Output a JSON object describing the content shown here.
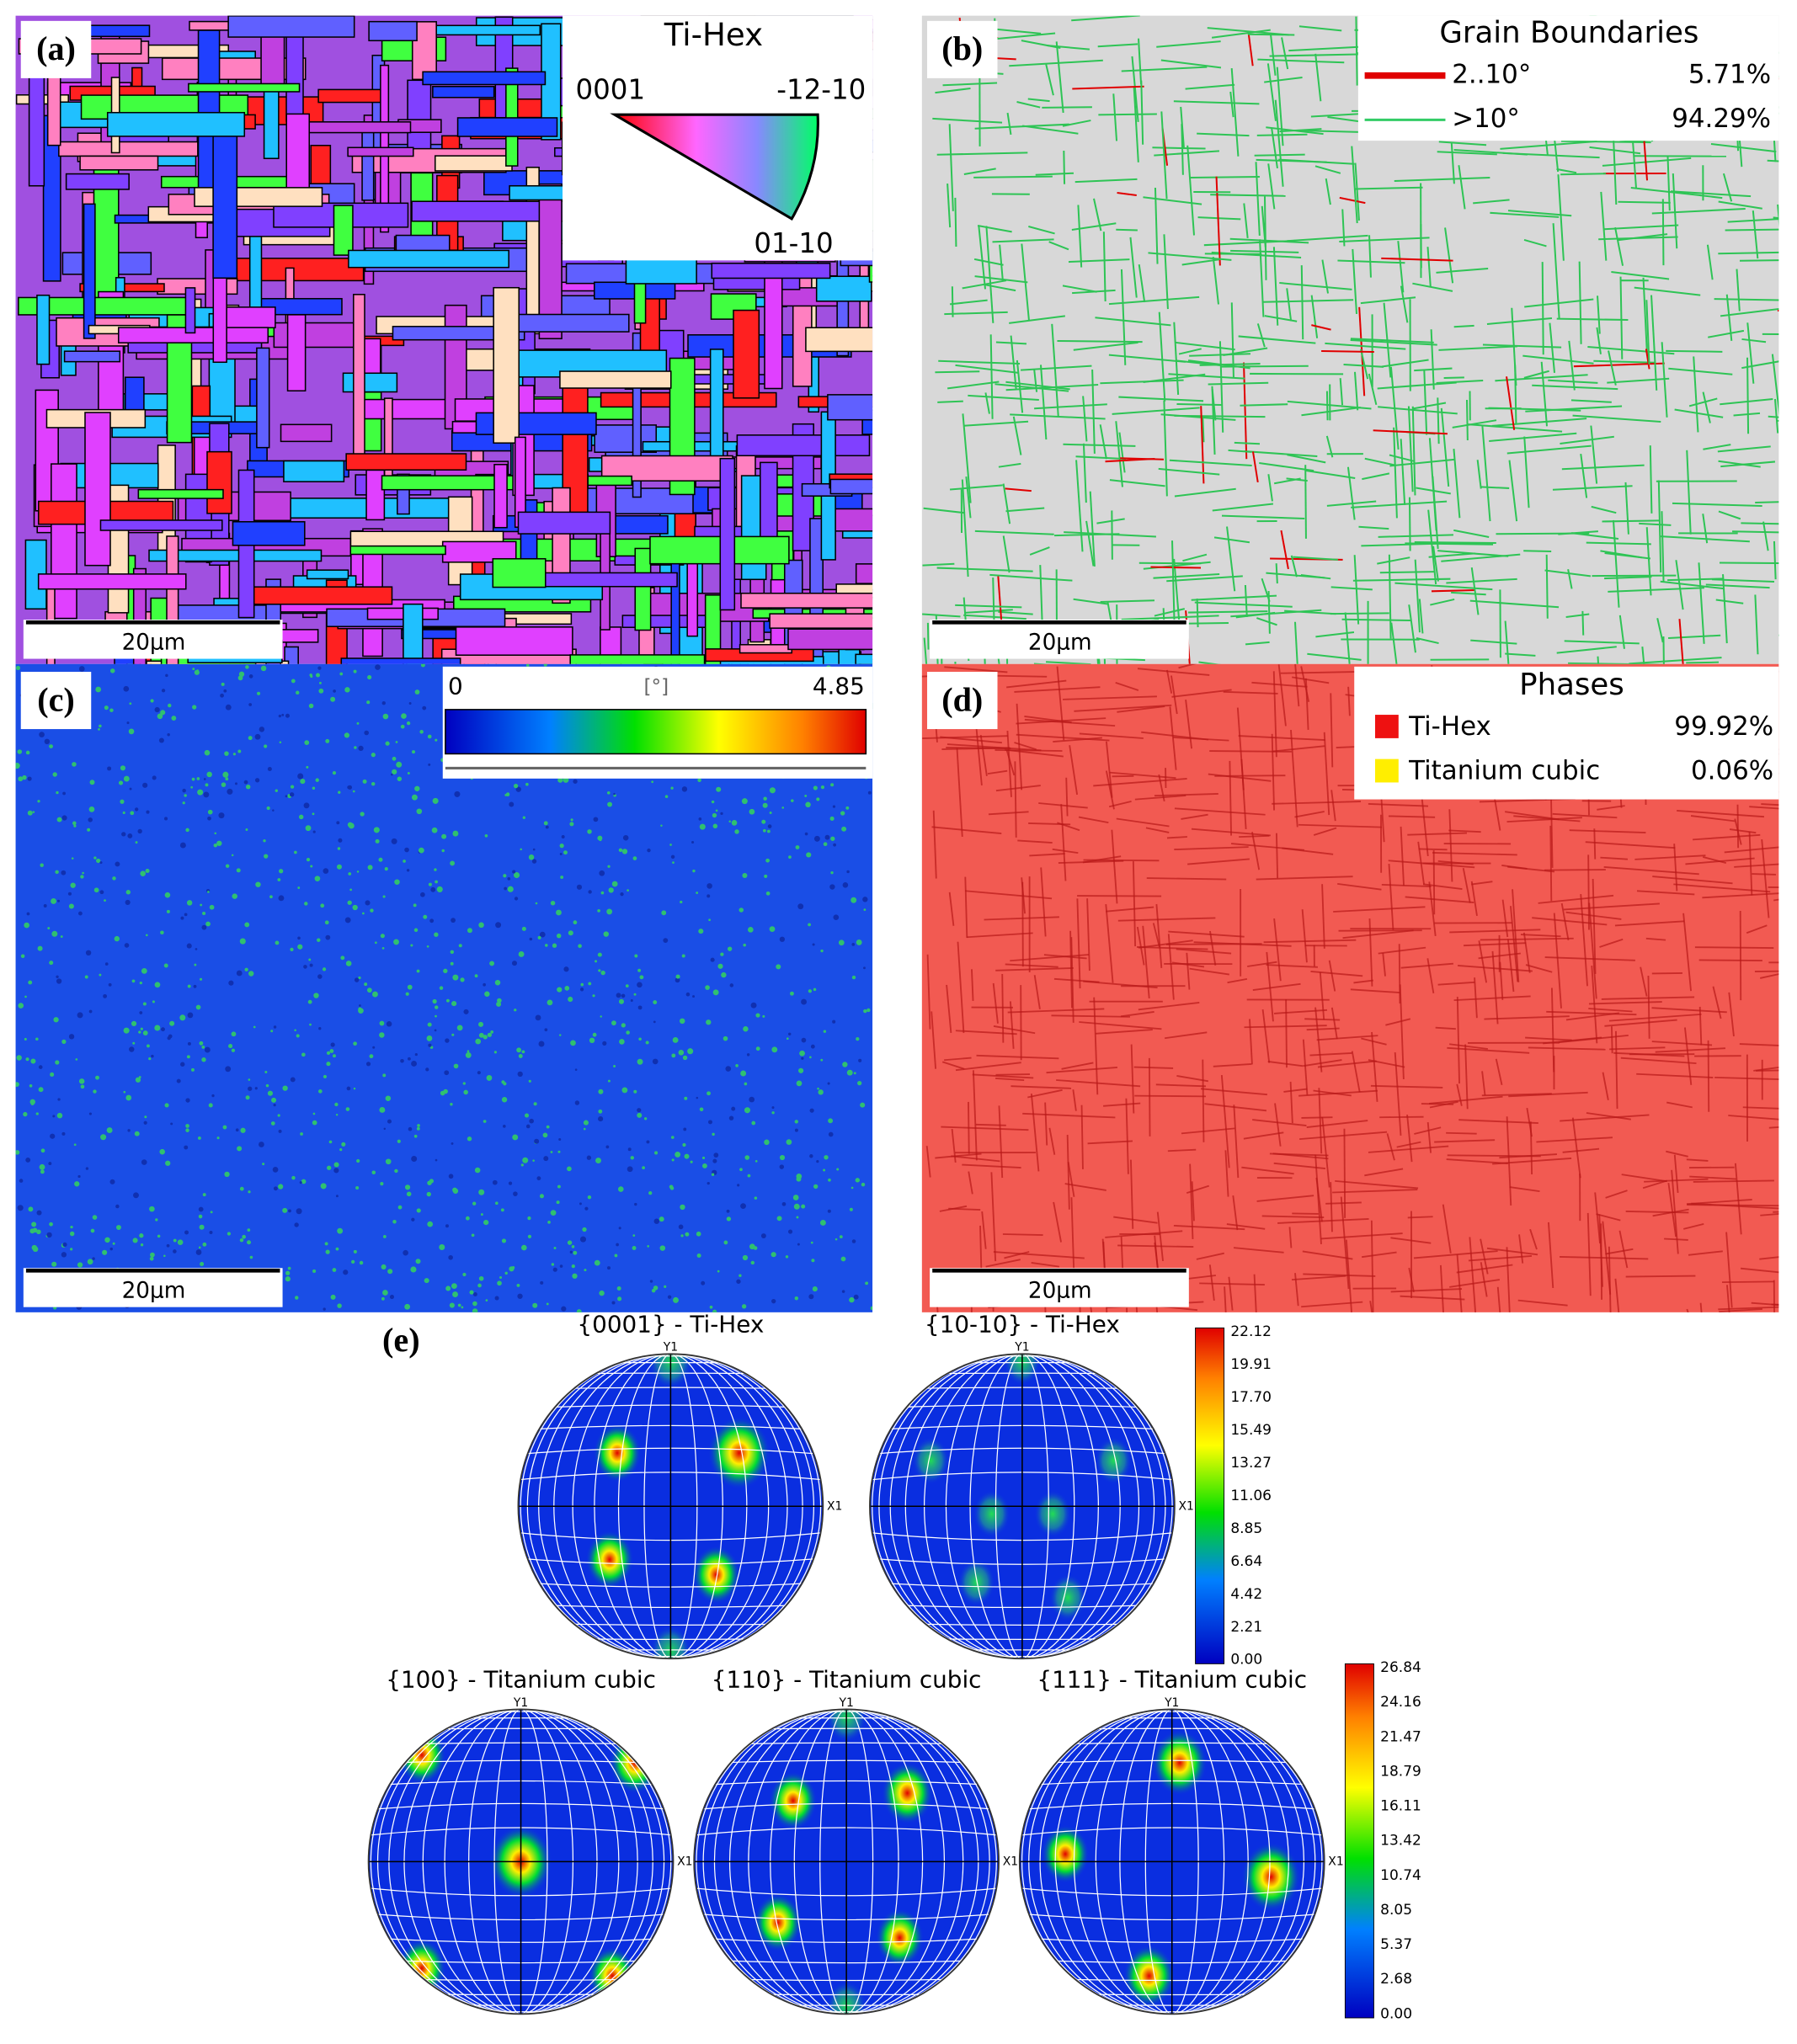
{
  "panels": [
    {
      "label": "(a)",
      "scale_bar": "20μm",
      "legend": {
        "title": "Ti-Hex",
        "corners": [
          "0001",
          "-12-10",
          "01-10"
        ]
      }
    },
    {
      "label": "(b)",
      "scale_bar": "20μm",
      "legend": {
        "title": "Grain Boundaries",
        "items": [
          {
            "name": "2..10°",
            "percent": "5.71%",
            "color": "#e00000"
          },
          {
            "name": ">10°",
            "percent": "94.29%",
            "color": "#33cc66"
          }
        ]
      }
    },
    {
      "label": "(c)",
      "scale_bar": "20μm",
      "legend": {
        "min": "0",
        "unit": "[°]",
        "max": "4.85"
      }
    },
    {
      "label": "(d)",
      "scale_bar": "20μm",
      "legend": {
        "title": "Phases",
        "items": [
          {
            "name": "Ti-Hex",
            "percent": "99.92%",
            "color": "#ee1111"
          },
          {
            "name": "Titanium cubic",
            "percent": "0.06%",
            "color": "#ffee00"
          }
        ]
      }
    }
  ],
  "pole_figures": {
    "label": "(e)",
    "axis_labels": {
      "y": "Y1",
      "x": "X1"
    },
    "hex": {
      "titles": [
        "{0001} - Ti-Hex",
        "{10-10} - Ti-Hex"
      ],
      "colorbar": [
        "22.12",
        "19.91",
        "17.70",
        "15.49",
        "13.27",
        "11.06",
        "8.85",
        "6.64",
        "4.42",
        "2.21",
        "0.00"
      ]
    },
    "cubic": {
      "titles": [
        "{100} - Titanium cubic",
        "{110} - Titanium cubic",
        "{111} - Titanium cubic"
      ],
      "colorbar": [
        "26.84",
        "24.16",
        "21.47",
        "18.79",
        "16.11",
        "13.42",
        "10.74",
        "8.05",
        "5.37",
        "2.68",
        "0.00"
      ]
    }
  }
}
